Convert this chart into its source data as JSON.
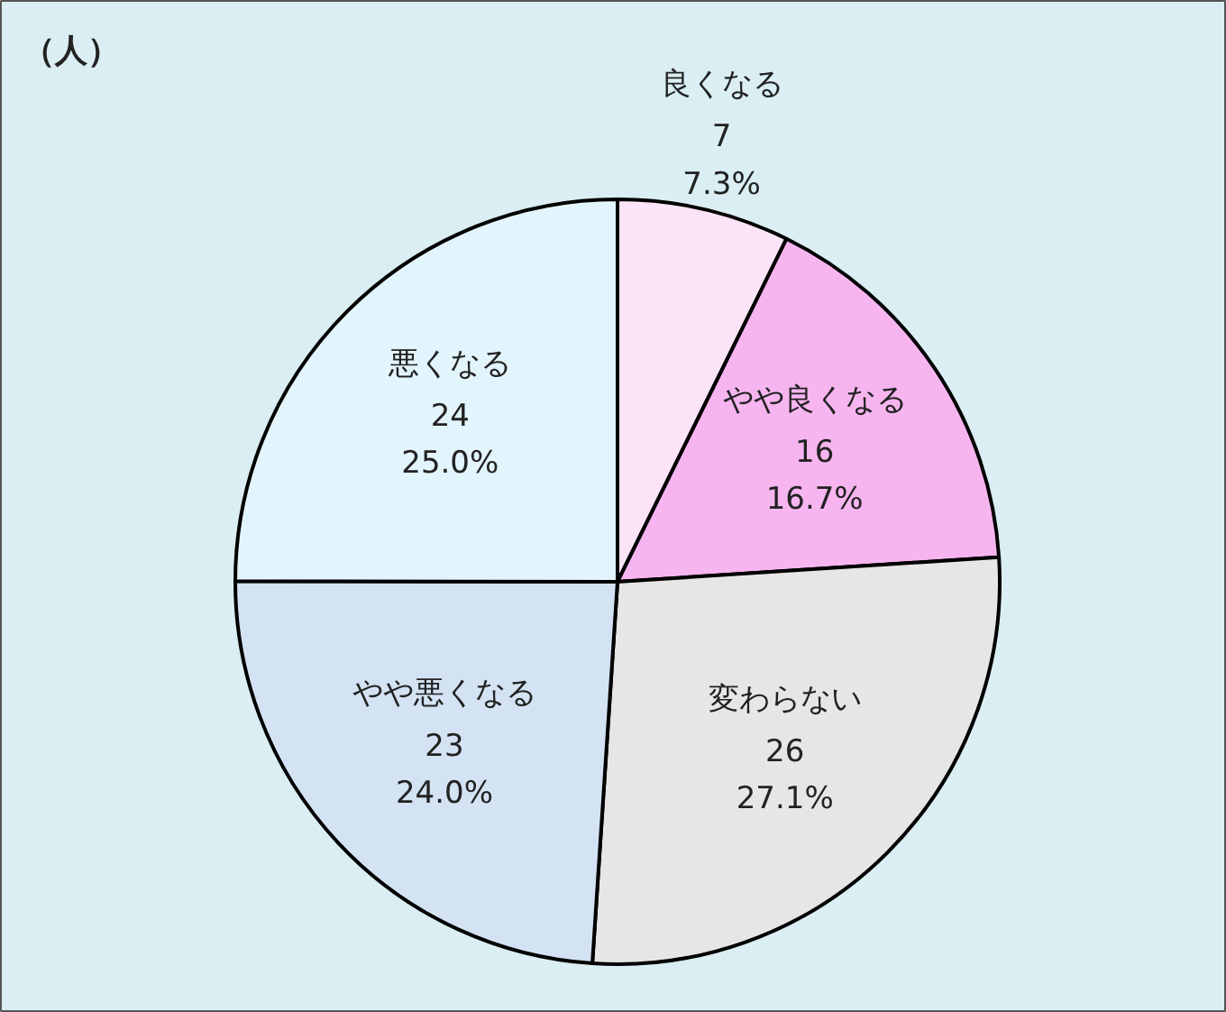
{
  "chart_data": {
    "type": "pie",
    "categories": [
      "良くなる",
      "やや良くなる",
      "変わらない",
      "やや悪くなる",
      "悪くなる"
    ],
    "values": [
      7.3,
      16.7,
      27.1,
      24.0,
      25.0
    ],
    "value_labels": [
      "7\n7.3%",
      "16\n16.7%",
      "26\n27.1%",
      "23\n24.0%",
      "24\n25.0%"
    ],
    "colors": [
      "#fbe3f8",
      "#f7b5f0",
      "#e6e6e6",
      "#d3e3f3",
      "#e3f5fc"
    ],
    "annotations": [
      "（人）"
    ]
  }
}
